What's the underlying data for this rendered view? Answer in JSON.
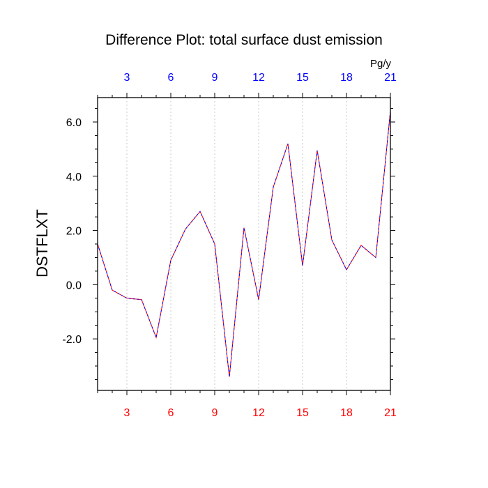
{
  "chart_data": {
    "type": "line",
    "title": "Difference Plot: total surface dust emission",
    "ylabel": "DSTFLXT",
    "xlabel": "",
    "units": "Pg/y",
    "xlim": [
      1,
      21
    ],
    "ylim": [
      -3.9,
      6.9
    ],
    "grid": "vertical dotted lines at x ticks",
    "x_ticks": [
      3,
      6,
      9,
      12,
      15,
      18,
      21
    ],
    "x_tick_labels": [
      "3",
      "6",
      "9",
      "12",
      "15",
      "18",
      "21"
    ],
    "y_ticks": [
      -2.0,
      0.0,
      2.0,
      4.0,
      6.0
    ],
    "y_tick_labels": [
      "-2.0",
      "0.0",
      "2.0",
      "4.0",
      "6.0"
    ],
    "colors": {
      "bottom_tick_labels": "#ff0000",
      "top_tick_labels": "#0000ff",
      "line_dash_a": "#ff0000",
      "line_dash_b": "#0000ff"
    },
    "series": [
      {
        "x": [
          1,
          2,
          3,
          4,
          5,
          6,
          7,
          8,
          9,
          10,
          11,
          12,
          13,
          14,
          15,
          16,
          17,
          18,
          19,
          20,
          21
        ],
        "values": [
          1.5,
          -0.2,
          -0.5,
          -0.55,
          -1.95,
          0.9,
          2.05,
          2.7,
          1.5,
          -3.4,
          2.1,
          -0.55,
          3.6,
          5.2,
          0.7,
          4.95,
          1.65,
          0.55,
          1.45,
          1.0,
          6.4
        ]
      }
    ]
  }
}
